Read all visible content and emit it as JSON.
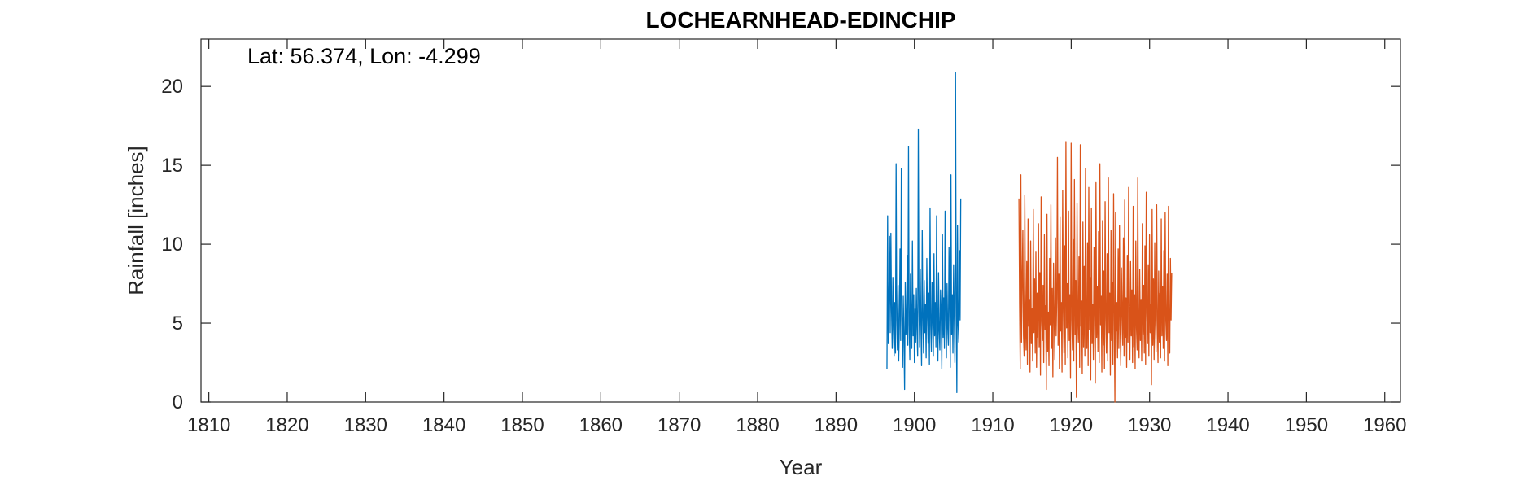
{
  "chart_data": {
    "type": "line",
    "title": "LOCHEARNHEAD-EDINCHIP",
    "annotation": "Lat: 56.374, Lon: -4.299",
    "xlabel": "Year",
    "ylabel": "Rainfall [inches]",
    "xlim": [
      1809,
      1962
    ],
    "ylim": [
      0,
      23
    ],
    "xticks": [
      1810,
      1820,
      1830,
      1840,
      1850,
      1860,
      1870,
      1880,
      1890,
      1900,
      1910,
      1920,
      1930,
      1940,
      1950,
      1960
    ],
    "yticks": [
      0,
      5,
      10,
      15,
      20
    ],
    "grid": false,
    "series": [
      {
        "color": "#0072BD",
        "x_start": 1896.5,
        "step": 0.0833,
        "values": [
          2.1,
          11.8,
          3.7,
          6.2,
          10.5,
          4.4,
          10.7,
          5.8,
          3.4,
          7.9,
          4.6,
          2.9,
          6.3,
          3.1,
          15.1,
          5.2,
          3.3,
          7.4,
          2.6,
          4.8,
          9.7,
          3.9,
          14.8,
          5.5,
          2.2,
          6.7,
          4.1,
          0.8,
          7.6,
          4.3,
          5.1,
          9.3,
          3.6,
          16.2,
          4.9,
          2.7,
          8.1,
          5.6,
          3.4,
          10.2,
          4.2,
          6.8,
          2.5,
          5.9,
          3.8,
          7.2,
          4.6,
          2.9,
          17.3,
          6.1,
          3.5,
          8.4,
          4.9,
          2.3,
          10.9,
          5.3,
          3.1,
          7.7,
          4.4,
          6.2,
          2.8,
          9.1,
          5.4,
          3.7,
          6.9,
          2.4,
          12.3,
          4.8,
          3.2,
          7.6,
          5.1,
          2.9,
          9.4,
          4.2,
          6.3,
          3.5,
          11.8,
          5.7,
          2.6,
          8.2,
          4.5,
          3.3,
          7.1,
          5.8,
          2.1,
          10.6,
          4.1,
          6.6,
          3.4,
          12.1,
          5.2,
          2.8,
          7.5,
          4.7,
          3.6,
          9.8,
          5.9,
          2.2,
          14.4,
          4.3,
          6.8,
          3.1,
          8.7,
          5.5,
          2.5,
          20.9,
          6.4,
          0.6,
          11.2,
          4.9,
          3.8,
          9.6,
          5.2,
          12.9
        ]
      },
      {
        "color": "#D95319",
        "x_start": 1913.33,
        "step": 0.0833,
        "values": [
          12.9,
          6.2,
          2.1,
          14.4,
          3.8,
          7.6,
          10.9,
          4.2,
          2.9,
          13.1,
          5.6,
          3.3,
          8.9,
          2.4,
          11.6,
          4.8,
          6.5,
          1.9,
          10.2,
          3.7,
          5.9,
          2.6,
          12.2,
          4.4,
          7.8,
          3.1,
          9.5,
          2.2,
          6.9,
          4.1,
          11.3,
          3.5,
          8.2,
          1.7,
          13.0,
          5.1,
          3.9,
          7.4,
          2.5,
          10.6,
          4.6,
          6.1,
          0.8,
          11.9,
          3.2,
          5.7,
          2.3,
          9.1,
          4.9,
          12.5,
          3.4,
          7.2,
          1.6,
          8.8,
          5.3,
          2.7,
          10.4,
          4.2,
          6.6,
          15.5,
          3.6,
          8.1,
          2.1,
          11.7,
          4.5,
          6.3,
          1.9,
          13.4,
          5.8,
          3.1,
          9.9,
          2.4,
          16.5,
          4.7,
          7.5,
          2.8,
          12.1,
          3.9,
          6.8,
          1.5,
          16.4,
          5.2,
          3.3,
          10.3,
          2.6,
          14.1,
          4.3,
          7.7,
          0.3,
          12.6,
          5.5,
          3.8,
          9.2,
          2.2,
          16.3,
          4.8,
          6.4,
          1.8,
          11.4,
          3.5,
          8.6,
          2.9,
          14.8,
          5.1,
          3.4,
          10.1,
          2.3,
          13.6,
          4.6,
          7.9,
          1.4,
          12.3,
          3.7,
          6.2,
          2.7,
          9.8,
          5.6,
          1.2,
          13.9,
          4.1,
          7.3,
          3.2,
          10.8,
          2.5,
          15.1,
          4.9,
          6.7,
          1.9,
          11.5,
          3.6,
          8.3,
          2.1,
          12.7,
          5.3,
          3.1,
          9.4,
          2.6,
          14.2,
          4.4,
          6.9,
          1.7,
          10.9,
          3.9,
          7.6,
          2.4,
          13.2,
          5.2,
          0.0,
          12.0,
          4.5,
          6.3,
          2.8,
          9.7,
          3.4,
          11.2,
          4.8,
          2.3,
          8.5,
          5.7,
          3.6,
          10.4,
          2.9,
          12.8,
          4.1,
          6.6,
          2.2,
          9.3,
          3.8,
          13.6,
          5.4,
          2.7,
          8.9,
          4.2,
          7.1,
          2.5,
          12.4,
          3.5,
          6.8,
          2.1,
          10.2,
          4.7,
          3.3,
          14.2,
          5.1,
          2.8,
          8.4,
          3.9,
          6.5,
          2.6,
          11.3,
          4.3,
          7.4,
          3.1,
          9.9,
          2.4,
          13.3,
          5.6,
          3.7,
          8.7,
          2.9,
          10.6,
          4.4,
          6.2,
          1.1,
          12.2,
          3.6,
          7.8,
          2.7,
          10.1,
          4.9,
          3.2,
          12.5,
          5.3,
          2.5,
          8.3,
          3.8,
          6.9,
          2.8,
          11.6,
          4.2,
          7.3,
          3.4,
          9.6,
          2.6,
          12.0,
          5.1,
          3.9,
          8.1,
          2.3,
          12.4,
          4.6,
          3.1,
          9.1,
          5.2,
          8.2
        ]
      }
    ]
  }
}
